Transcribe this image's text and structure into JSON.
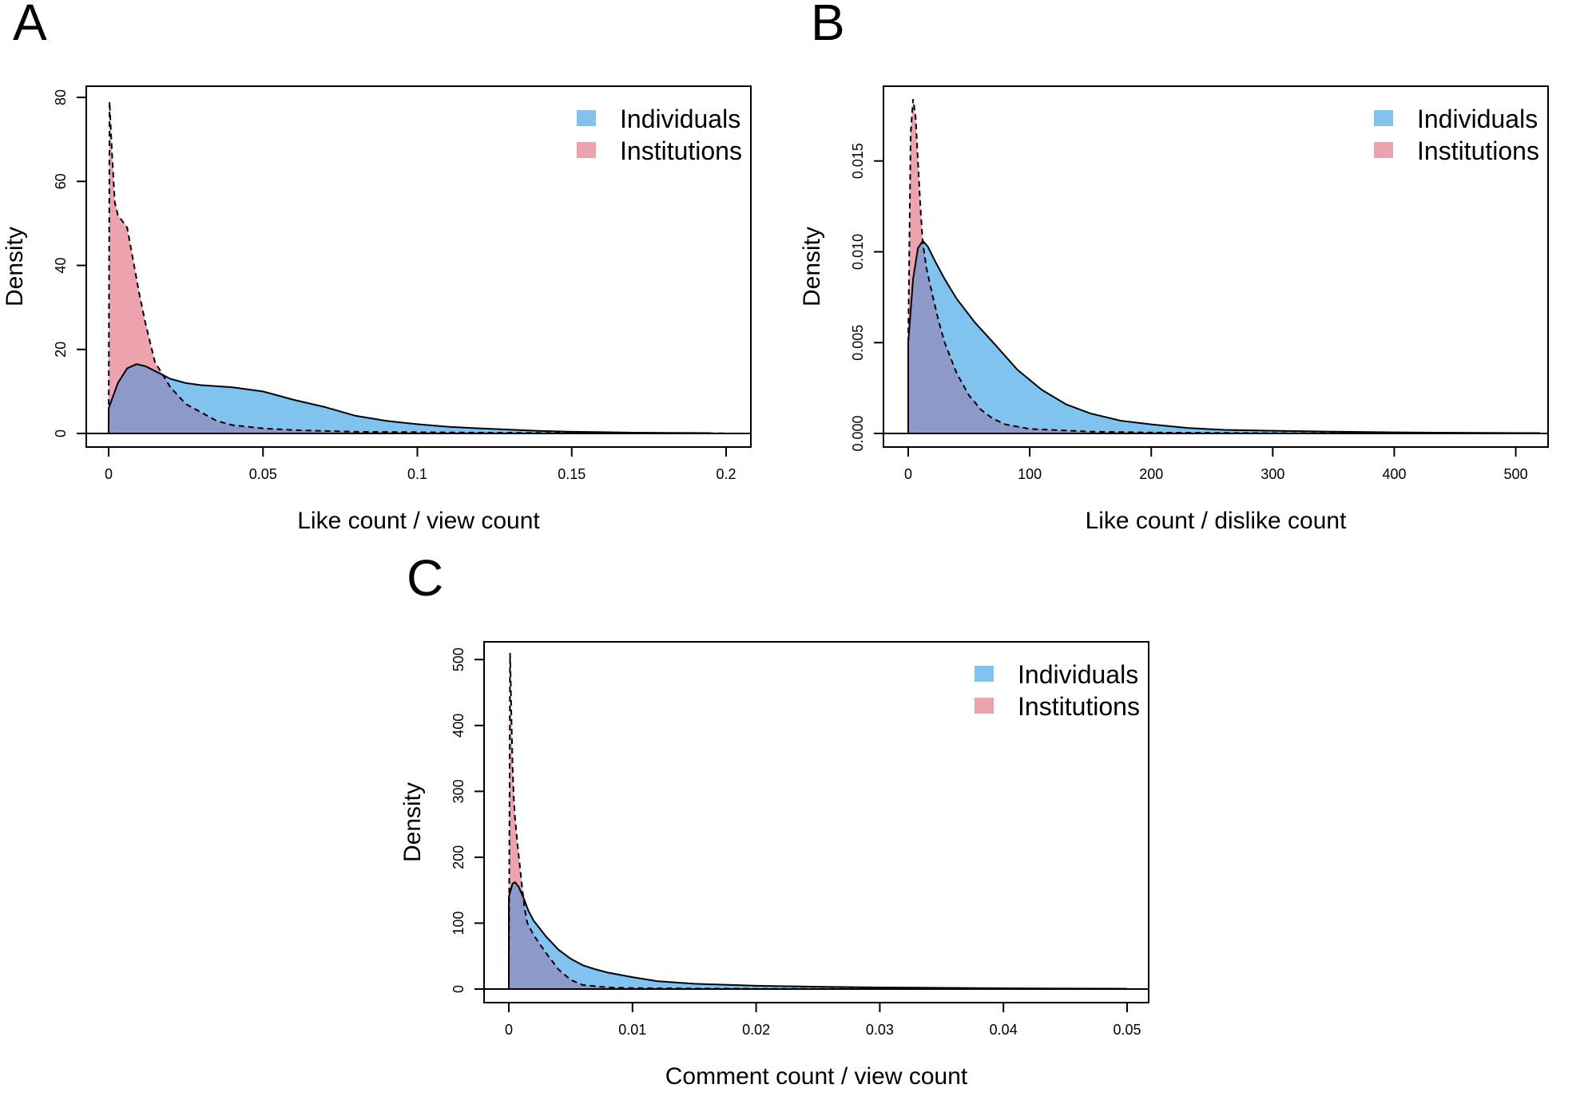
{
  "colors": {
    "individuals": "#7fc3ee",
    "institutions": "#eda3ad",
    "overlap": "#8c99c9",
    "line": "#000000"
  },
  "chart_data": [
    {
      "panel": "A",
      "type": "area",
      "xlabel": "Like count / view count",
      "ylabel": "Density",
      "xlim": [
        0,
        0.2
      ],
      "ylim": [
        0,
        80
      ],
      "xticks": [
        0,
        0.05,
        0.1,
        0.15,
        0.2
      ],
      "xtick_labels": [
        "0",
        "0.05",
        "0.1",
        "0.15",
        "0.2"
      ],
      "yticks": [
        0,
        20,
        40,
        60,
        80
      ],
      "ytick_labels": [
        "0",
        "20",
        "40",
        "60",
        "80"
      ],
      "legend": {
        "position": "top-right",
        "entries": [
          "Individuals",
          "Institutions"
        ]
      },
      "grid": false,
      "series": [
        {
          "name": "Individuals",
          "line": "solid",
          "x": [
            0,
            0.003,
            0.006,
            0.009,
            0.012,
            0.016,
            0.02,
            0.025,
            0.03,
            0.04,
            0.05,
            0.06,
            0.07,
            0.08,
            0.09,
            0.1,
            0.11,
            0.12,
            0.13,
            0.14,
            0.15,
            0.16,
            0.17,
            0.18,
            0.195
          ],
          "y": [
            6,
            12,
            15.5,
            16.5,
            16,
            14.5,
            13,
            12,
            11.5,
            11,
            10,
            8,
            6.3,
            4.2,
            3,
            2.2,
            1.6,
            1.2,
            0.9,
            0.6,
            0.4,
            0.3,
            0.2,
            0.15,
            0.1
          ]
        },
        {
          "name": "Institutions",
          "line": "dashed",
          "x": [
            0,
            0.0003,
            0.001,
            0.002,
            0.003,
            0.004,
            0.006,
            0.008,
            0.01,
            0.012,
            0.015,
            0.02,
            0.025,
            0.03,
            0.035,
            0.04,
            0.05,
            0.06,
            0.07,
            0.08,
            0.1,
            0.12,
            0.15,
            0.2
          ],
          "y": [
            0,
            79,
            68,
            55,
            52,
            51,
            49,
            41,
            33,
            26,
            17,
            11,
            7,
            5,
            3,
            2,
            1.2,
            0.8,
            0.6,
            0.4,
            0.3,
            0.2,
            0.1,
            0.05
          ]
        }
      ]
    },
    {
      "panel": "B",
      "type": "area",
      "xlabel": "Like count / dislike count",
      "ylabel": "Density",
      "xlim": [
        0,
        520
      ],
      "ylim": [
        0,
        0.0185
      ],
      "xticks": [
        0,
        100,
        200,
        300,
        400,
        500
      ],
      "xtick_labels": [
        "0",
        "100",
        "200",
        "300",
        "400",
        "500"
      ],
      "yticks": [
        0,
        0.005,
        0.01,
        0.015
      ],
      "ytick_labels": [
        "0.000",
        "0.005",
        "0.010",
        "0.015"
      ],
      "legend": {
        "position": "top-right",
        "entries": [
          "Individuals",
          "Institutions"
        ]
      },
      "grid": false,
      "series": [
        {
          "name": "Individuals",
          "line": "solid",
          "x": [
            0,
            4,
            8,
            12,
            16,
            22,
            30,
            40,
            55,
            70,
            90,
            110,
            130,
            150,
            175,
            200,
            230,
            260,
            300,
            350,
            400,
            450,
            520
          ],
          "y": [
            0.005,
            0.0085,
            0.0102,
            0.0106,
            0.0103,
            0.0095,
            0.0085,
            0.0074,
            0.0061,
            0.005,
            0.0035,
            0.0024,
            0.0016,
            0.0011,
            0.0007,
            0.0005,
            0.0003,
            0.0002,
            0.00015,
            0.0001,
            6e-05,
            4e-05,
            2e-05
          ]
        },
        {
          "name": "Institutions",
          "line": "dashed",
          "x": [
            0,
            2,
            4,
            6,
            8,
            10,
            12,
            15,
            20,
            25,
            30,
            40,
            50,
            60,
            70,
            80,
            100,
            150,
            200,
            300,
            450
          ],
          "y": [
            0.005,
            0.0165,
            0.0184,
            0.0175,
            0.015,
            0.0125,
            0.0105,
            0.0091,
            0.0076,
            0.0062,
            0.005,
            0.0033,
            0.0021,
            0.0013,
            0.0008,
            0.0005,
            0.00025,
            0.0001,
            5e-05,
            2e-05,
            1e-05
          ]
        }
      ]
    },
    {
      "panel": "C",
      "type": "area",
      "xlabel": "Comment count / view count",
      "ylabel": "Density",
      "xlim": [
        0,
        0.05
      ],
      "ylim": [
        0,
        510
      ],
      "xticks": [
        0,
        0.01,
        0.02,
        0.03,
        0.04,
        0.05
      ],
      "xtick_labels": [
        "0",
        "0.01",
        "0.02",
        "0.03",
        "0.04",
        "0.05"
      ],
      "yticks": [
        0,
        100,
        200,
        300,
        400,
        500
      ],
      "ytick_labels": [
        "0",
        "100",
        "200",
        "300",
        "400",
        "500"
      ],
      "legend": {
        "position": "top-right",
        "entries": [
          "Individuals",
          "Institutions"
        ]
      },
      "grid": false,
      "series": [
        {
          "name": "Individuals",
          "line": "solid",
          "x": [
            0,
            0.0003,
            0.0005,
            0.0008,
            0.0012,
            0.0016,
            0.002,
            0.003,
            0.004,
            0.005,
            0.006,
            0.007,
            0.008,
            0.01,
            0.012,
            0.015,
            0.02,
            0.025,
            0.03,
            0.035,
            0.04,
            0.045,
            0.05
          ],
          "y": [
            140,
            160,
            162,
            155,
            138,
            118,
            104,
            80,
            60,
            46,
            36,
            30,
            25,
            18,
            12,
            8,
            5,
            3.5,
            2.5,
            1.8,
            1.2,
            0.8,
            0.5
          ]
        },
        {
          "name": "Institutions",
          "line": "dashed",
          "x": [
            0,
            0.0001,
            0.00015,
            0.0002,
            0.0003,
            0.0004,
            0.0005,
            0.0007,
            0.0009,
            0.0011,
            0.0013,
            0.0015,
            0.002,
            0.003,
            0.004,
            0.005,
            0.006,
            0.008,
            0.01,
            0.015,
            0.02,
            0.03,
            0.05
          ],
          "y": [
            0,
            510,
            470,
            420,
            340,
            290,
            260,
            220,
            185,
            150,
            120,
            100,
            82,
            55,
            30,
            14,
            6,
            2.5,
            1.5,
            0.8,
            0.5,
            0.2,
            0.1
          ]
        }
      ]
    }
  ]
}
